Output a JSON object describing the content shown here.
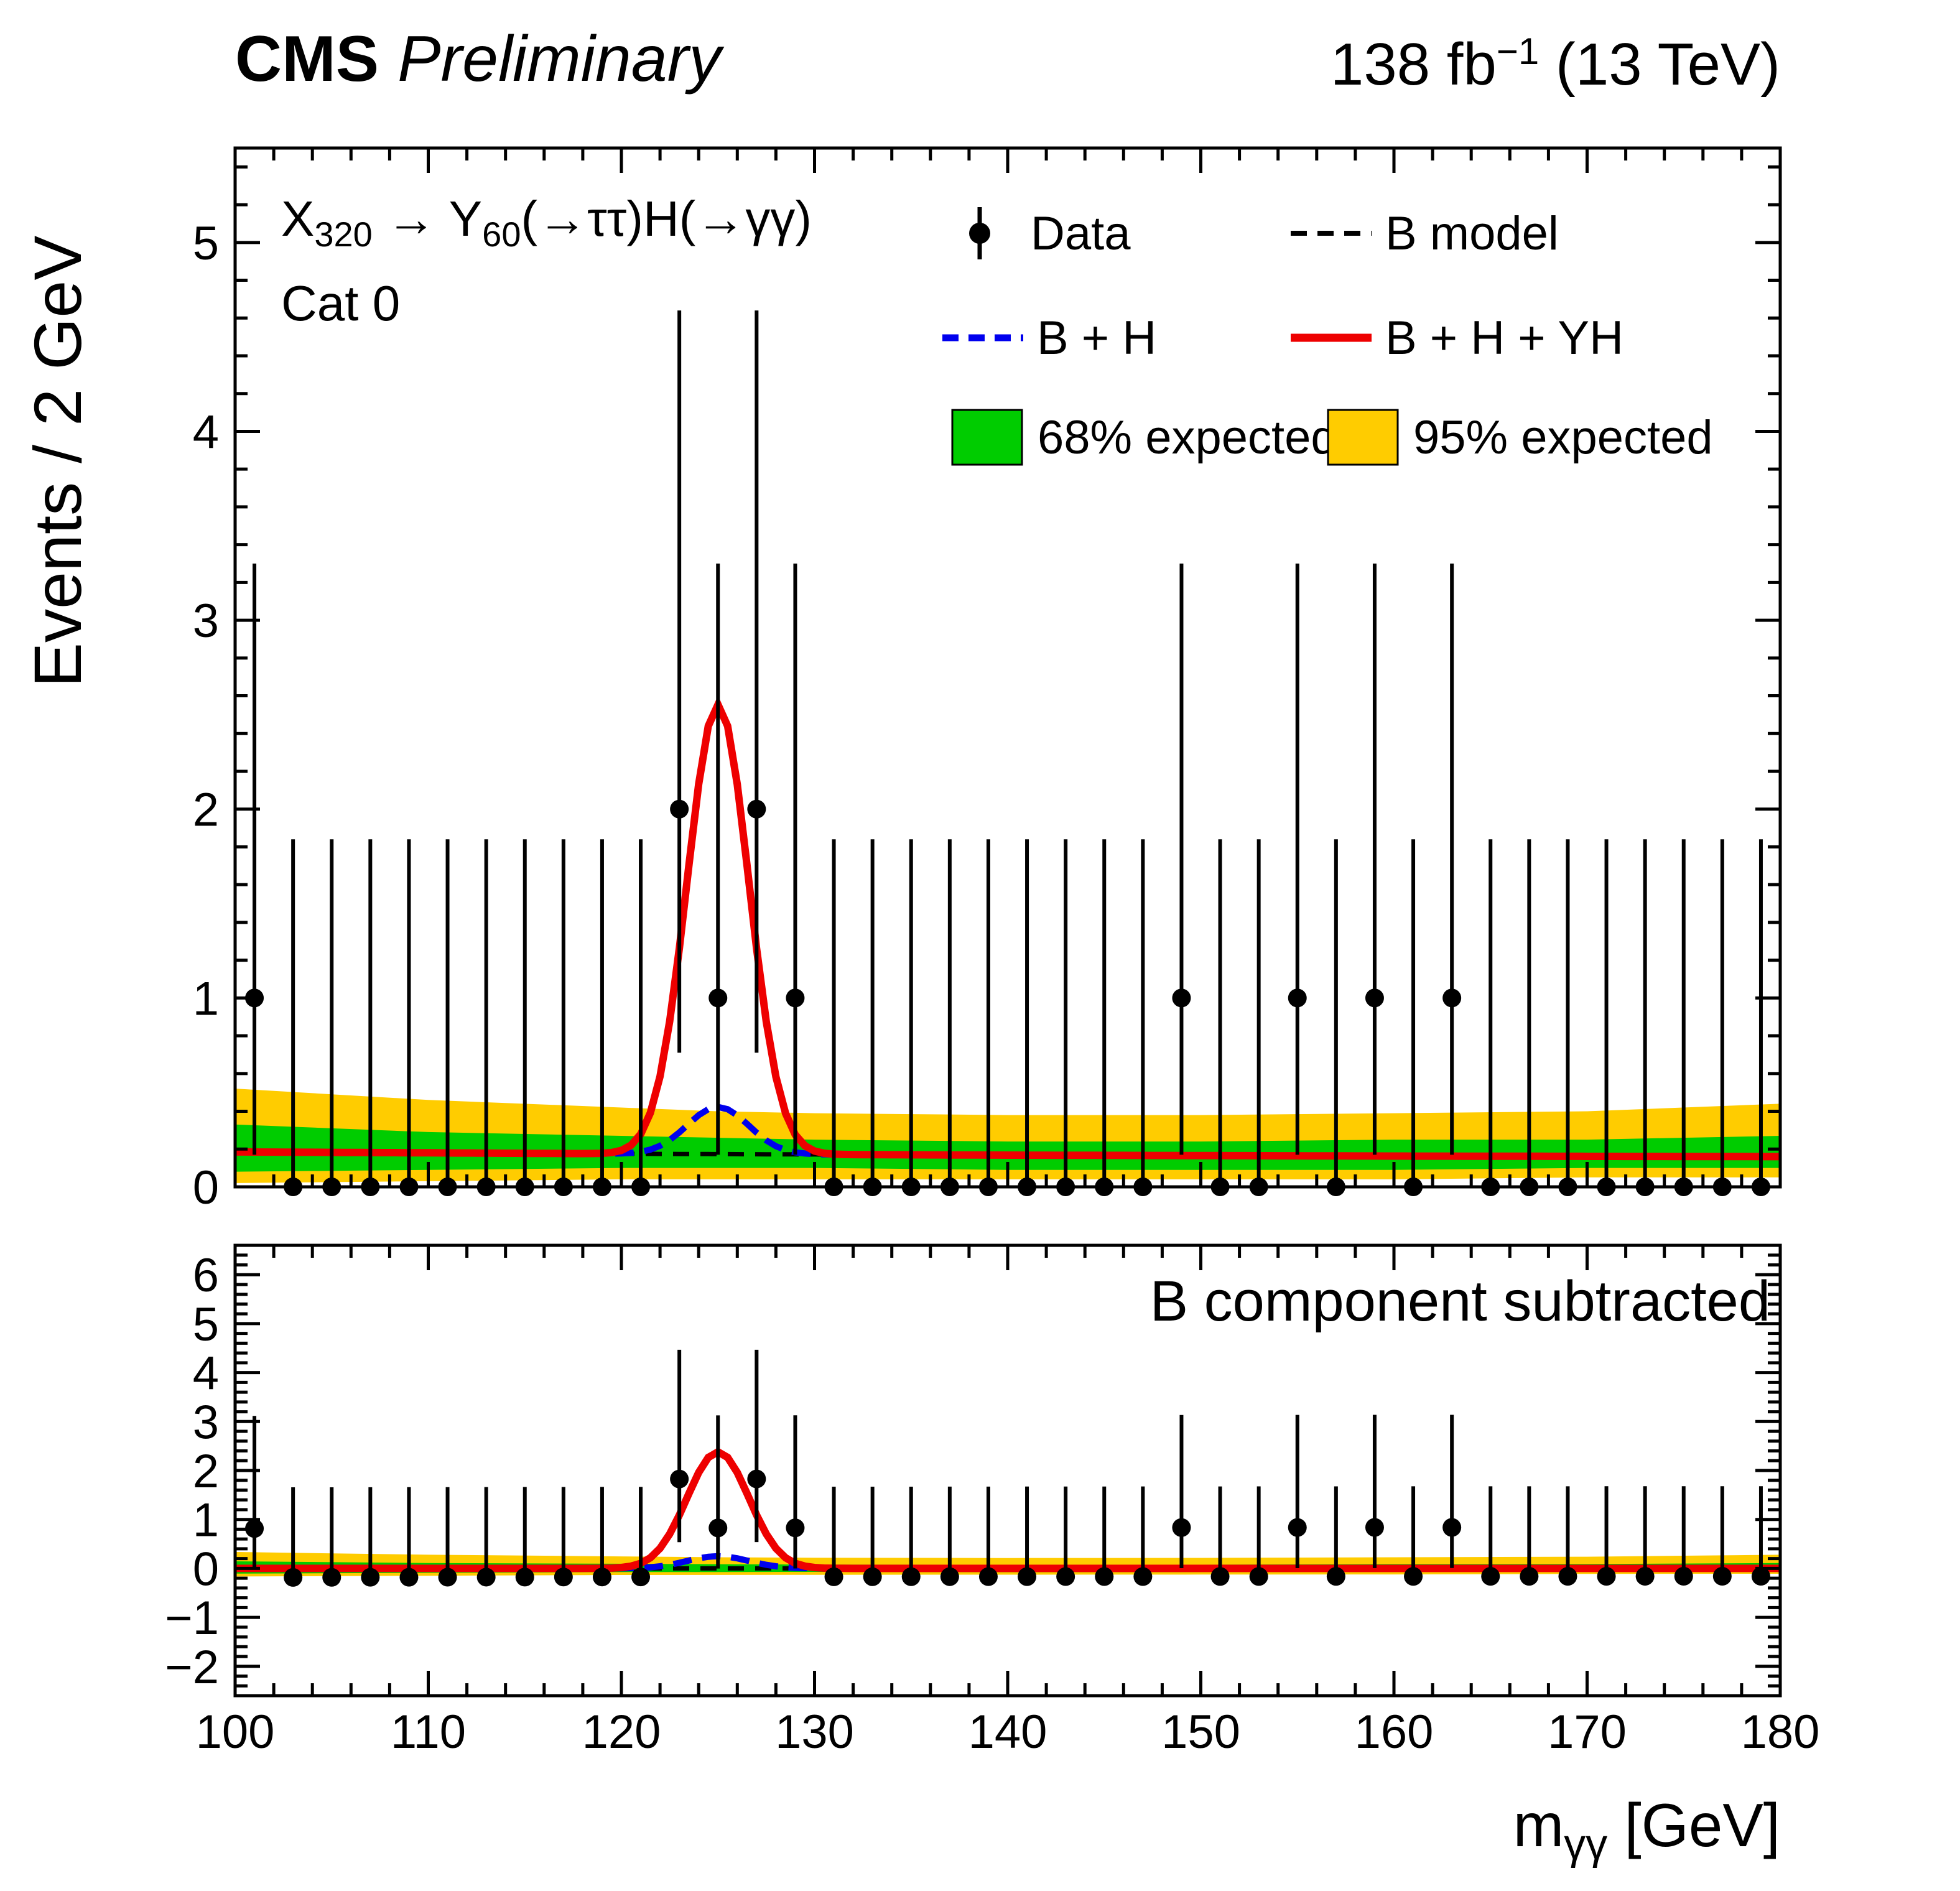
{
  "header": {
    "experiment": "CMS",
    "label": "Preliminary",
    "lumi_main": "138 fb",
    "lumi_sup": "−1",
    "lumi_energy": " (13 TeV)"
  },
  "annotations": {
    "process": {
      "p1": "X",
      "s1": "320",
      "p2": " → Y",
      "s2": "60",
      "p3": "(→ττ)H(→γγ)"
    },
    "category": "Cat 0",
    "bottom_label": "B component subtracted"
  },
  "axes": {
    "y_title": "Events / 2 GeV",
    "x_title_main": "m",
    "x_title_sub": "γγ",
    "x_title_unit": " [GeV]"
  },
  "legend": [
    {
      "label": "Data",
      "type": "marker"
    },
    {
      "label": "B model",
      "type": "dashed-black"
    },
    {
      "label": "B + H",
      "type": "dashed-blue"
    },
    {
      "label": "B + H + YH",
      "type": "solid-red"
    },
    {
      "label": "68% expected",
      "type": "box-green"
    },
    {
      "label": "95% expected",
      "type": "box-yellow"
    }
  ],
  "colors": {
    "data": "#000000",
    "b_model": "#000000",
    "b_plus_h": "#0000ee",
    "b_plus_h_plus_yh": "#ee0000",
    "band_68": "#00cc00",
    "band_95": "#ffcc00",
    "frame": "#000000"
  },
  "chart_data": {
    "type": "scatter",
    "title": "X320 → Y60(→ττ)H(→γγ), Cat 0",
    "xlabel": "mγγ [GeV]",
    "ylabel": "Events / 2 GeV",
    "grid": false,
    "legend_position": "top-inside",
    "xlim": [
      100,
      180
    ],
    "x_major_ticks": [
      100,
      110,
      120,
      130,
      140,
      150,
      160,
      170,
      180
    ],
    "x_minor_step": 2,
    "bin_width": 2,
    "bin_centers": [
      101,
      103,
      105,
      107,
      109,
      111,
      113,
      115,
      117,
      119,
      121,
      123,
      125,
      127,
      129,
      131,
      133,
      135,
      137,
      139,
      141,
      143,
      145,
      147,
      149,
      151,
      153,
      155,
      157,
      159,
      161,
      163,
      165,
      167,
      169,
      171,
      173,
      175,
      177,
      179
    ],
    "counts": [
      1,
      0,
      0,
      0,
      0,
      0,
      0,
      0,
      0,
      0,
      0,
      2,
      1,
      2,
      1,
      0,
      0,
      0,
      0,
      0,
      0,
      0,
      0,
      0,
      1,
      0,
      0,
      1,
      0,
      1,
      0,
      1,
      0,
      0,
      0,
      0,
      0,
      0,
      0,
      0
    ],
    "poisson_intervals": {
      "0": [
        0,
        1.84
      ],
      "1": [
        0.17,
        3.3
      ],
      "2": [
        0.71,
        4.64
      ]
    },
    "b_model": {
      "x": [
        100,
        120,
        140,
        160,
        180
      ],
      "y": [
        0.185,
        0.175,
        0.168,
        0.163,
        0.16
      ]
    },
    "signals": {
      "higgs": {
        "mean": 125,
        "sigma": 1.6,
        "amplitude": 0.25
      },
      "yh_plus_higgs": {
        "mean": 125,
        "sigma": 1.6,
        "amplitude": 2.38
      }
    },
    "bands": {
      "x": [
        100,
        110,
        120,
        125,
        130,
        140,
        150,
        160,
        170,
        180
      ],
      "green_lo": [
        0.08,
        0.09,
        0.1,
        0.1,
        0.1,
        0.09,
        0.09,
        0.09,
        0.1,
        0.1
      ],
      "green_hi": [
        0.33,
        0.29,
        0.27,
        0.26,
        0.25,
        0.24,
        0.24,
        0.25,
        0.25,
        0.27
      ],
      "yellow_lo": [
        0.02,
        0.03,
        0.04,
        0.04,
        0.04,
        0.04,
        0.04,
        0.04,
        0.05,
        0.05
      ],
      "yellow_hi": [
        0.52,
        0.46,
        0.42,
        0.4,
        0.39,
        0.38,
        0.38,
        0.39,
        0.4,
        0.44
      ]
    },
    "top_panel": {
      "ylim": [
        0,
        5.5
      ],
      "y_major_ticks": [
        0,
        1,
        2,
        3,
        4,
        5
      ],
      "y_minor_step": 0.2
    },
    "bottom_panel": {
      "ylim": [
        -2.6,
        6.6
      ],
      "y_major_ticks": [
        -2,
        -1,
        0,
        1,
        2,
        3,
        4,
        5,
        6
      ],
      "y_minor_step": 0.2,
      "label": "B component subtracted"
    }
  }
}
